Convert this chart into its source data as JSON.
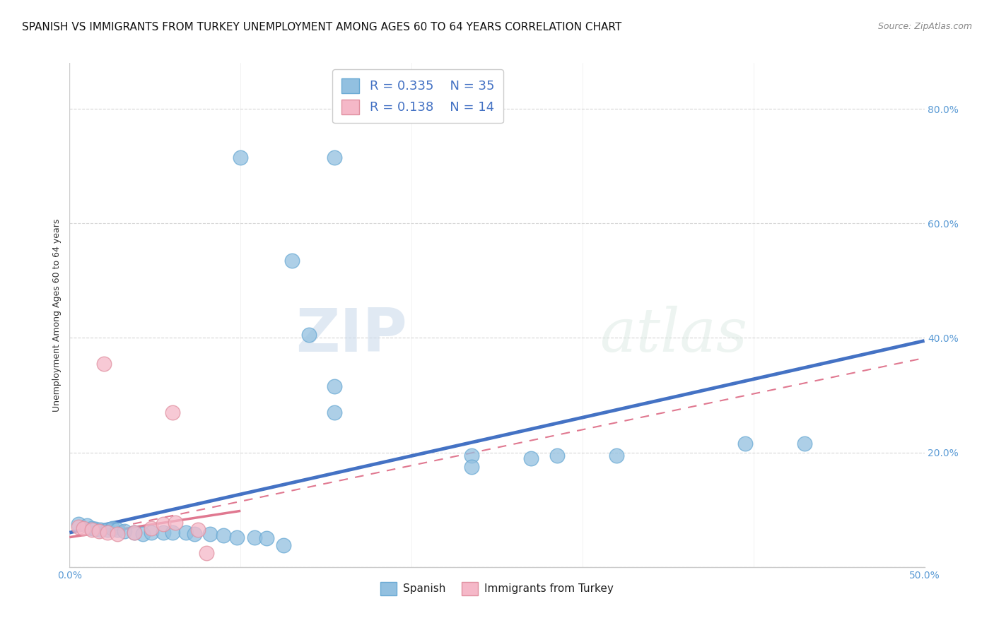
{
  "title": "SPANISH VS IMMIGRANTS FROM TURKEY UNEMPLOYMENT AMONG AGES 60 TO 64 YEARS CORRELATION CHART",
  "source": "Source: ZipAtlas.com",
  "ylabel": "Unemployment Among Ages 60 to 64 years",
  "yticks": [
    0.0,
    0.2,
    0.4,
    0.6,
    0.8
  ],
  "ytick_labels": [
    "",
    "20.0%",
    "40.0%",
    "60.0%",
    "80.0%"
  ],
  "xlim": [
    0.0,
    0.5
  ],
  "ylim": [
    0.0,
    0.88
  ],
  "watermark_top": "ZIP",
  "watermark_bot": "atlas",
  "legend_entries": [
    {
      "label": "Spanish",
      "color": "#aec6e8",
      "R": 0.335,
      "N": 35
    },
    {
      "label": "Immigrants from Turkey",
      "color": "#f4b8c1",
      "R": 0.138,
      "N": 14
    }
  ],
  "spanish_scatter": [
    [
      0.1,
      0.715
    ],
    [
      0.155,
      0.715
    ],
    [
      0.13,
      0.535
    ],
    [
      0.14,
      0.405
    ],
    [
      0.155,
      0.315
    ],
    [
      0.155,
      0.27
    ],
    [
      0.235,
      0.195
    ],
    [
      0.235,
      0.175
    ],
    [
      0.285,
      0.195
    ],
    [
      0.32,
      0.195
    ],
    [
      0.395,
      0.215
    ],
    [
      0.43,
      0.215
    ],
    [
      0.27,
      0.19
    ],
    [
      0.005,
      0.075
    ],
    [
      0.01,
      0.072
    ],
    [
      0.013,
      0.068
    ],
    [
      0.015,
      0.066
    ],
    [
      0.018,
      0.065
    ],
    [
      0.022,
      0.065
    ],
    [
      0.025,
      0.068
    ],
    [
      0.028,
      0.065
    ],
    [
      0.032,
      0.063
    ],
    [
      0.038,
      0.06
    ],
    [
      0.043,
      0.058
    ],
    [
      0.048,
      0.06
    ],
    [
      0.055,
      0.06
    ],
    [
      0.06,
      0.06
    ],
    [
      0.068,
      0.06
    ],
    [
      0.073,
      0.058
    ],
    [
      0.082,
      0.058
    ],
    [
      0.09,
      0.055
    ],
    [
      0.098,
      0.052
    ],
    [
      0.108,
      0.052
    ],
    [
      0.115,
      0.05
    ],
    [
      0.125,
      0.038
    ]
  ],
  "turkey_scatter": [
    [
      0.02,
      0.355
    ],
    [
      0.06,
      0.27
    ],
    [
      0.005,
      0.07
    ],
    [
      0.008,
      0.068
    ],
    [
      0.013,
      0.065
    ],
    [
      0.017,
      0.063
    ],
    [
      0.022,
      0.06
    ],
    [
      0.028,
      0.058
    ],
    [
      0.038,
      0.06
    ],
    [
      0.048,
      0.068
    ],
    [
      0.055,
      0.075
    ],
    [
      0.062,
      0.078
    ],
    [
      0.075,
      0.065
    ],
    [
      0.08,
      0.025
    ]
  ],
  "spanish_line": [
    0.0,
    0.06,
    0.5,
    0.395
  ],
  "turkey_line_solid": [
    0.0,
    0.052,
    0.1,
    0.098
  ],
  "turkey_line_dashed": [
    0.0,
    0.052,
    0.5,
    0.365
  ],
  "grid_color": "#cccccc",
  "spanish_dot_color": "#92c0e0",
  "spanish_dot_edge": "#6aaad4",
  "spanish_line_color": "#4472c4",
  "turkey_dot_color": "#f5b8c8",
  "turkey_dot_edge": "#e090a0",
  "turkey_line_color": "#e07890",
  "background_color": "#ffffff",
  "title_fontsize": 11,
  "source_fontsize": 9,
  "axis_label_fontsize": 9,
  "tick_fontsize": 10,
  "legend_fontsize": 13
}
